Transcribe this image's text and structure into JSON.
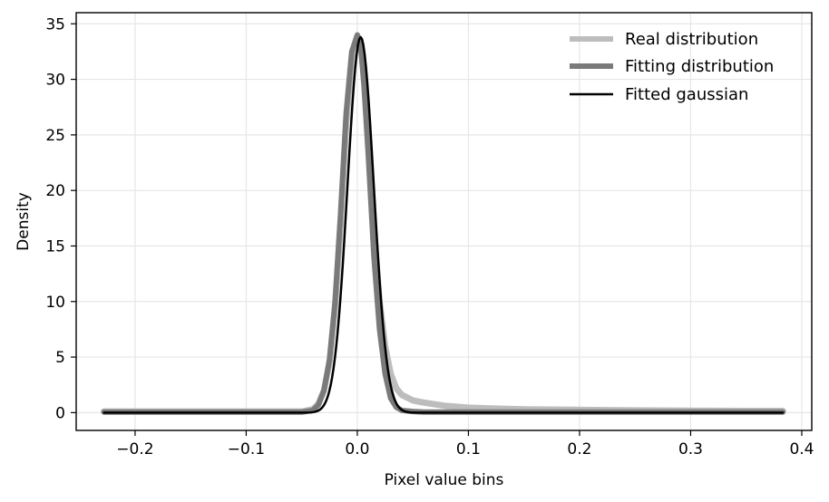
{
  "chart_data": {
    "type": "line",
    "title": "",
    "xlabel": "Pixel value bins",
    "ylabel": "Density",
    "xlim": [
      -0.253,
      0.409
    ],
    "ylim": [
      -1.6,
      36.0
    ],
    "xticks": [
      -0.2,
      -0.1,
      0.0,
      0.1,
      0.2,
      0.3,
      0.4
    ],
    "xtick_labels": [
      "−0.2",
      "−0.1",
      "0.0",
      "0.1",
      "0.2",
      "0.3",
      "0.4"
    ],
    "yticks": [
      0,
      5,
      10,
      15,
      20,
      25,
      30,
      35
    ],
    "ytick_labels": [
      "0",
      "5",
      "10",
      "15",
      "20",
      "25",
      "30",
      "35"
    ],
    "grid": true,
    "legend_position": "top-right",
    "series": [
      {
        "name": "Real distribution",
        "color": "#bdbdbd",
        "x": [
          -0.228,
          -0.1,
          -0.05,
          -0.04,
          -0.035,
          -0.03,
          -0.025,
          -0.02,
          -0.015,
          -0.01,
          -0.005,
          0.0,
          0.003,
          0.006,
          0.01,
          0.015,
          0.02,
          0.025,
          0.03,
          0.035,
          0.04,
          0.05,
          0.06,
          0.07,
          0.08,
          0.1,
          0.12,
          0.15,
          0.2,
          0.25,
          0.3,
          0.35,
          0.383
        ],
        "y": [
          0.1,
          0.1,
          0.1,
          0.3,
          0.8,
          2.0,
          4.5,
          9.5,
          17.0,
          26.0,
          32.0,
          33.5,
          33.2,
          30.5,
          24.0,
          16.5,
          10.0,
          6.0,
          3.5,
          2.2,
          1.6,
          1.1,
          0.9,
          0.75,
          0.6,
          0.45,
          0.38,
          0.3,
          0.25,
          0.2,
          0.17,
          0.15,
          0.15
        ]
      },
      {
        "name": "Fitting distribution",
        "color": "#7a7a7a",
        "x": [
          -0.228,
          -0.1,
          -0.05,
          -0.04,
          -0.035,
          -0.03,
          -0.025,
          -0.02,
          -0.015,
          -0.01,
          -0.005,
          0.0,
          0.003,
          0.006,
          0.01,
          0.015,
          0.02,
          0.025,
          0.03,
          0.035,
          0.04,
          0.05,
          0.06,
          0.07,
          0.08,
          0.1,
          0.15,
          0.2,
          0.25,
          0.3,
          0.35,
          0.383
        ],
        "y": [
          0.05,
          0.05,
          0.05,
          0.2,
          0.7,
          2.0,
          4.8,
          10.0,
          18.0,
          27.0,
          32.5,
          34.0,
          33.0,
          29.5,
          23.0,
          14.0,
          7.5,
          3.5,
          1.3,
          0.5,
          0.2,
          0.1,
          0.05,
          0.05,
          0.05,
          0.05,
          0.05,
          0.05,
          0.05,
          0.05,
          0.05,
          0.05
        ]
      },
      {
        "name": "Fitted gaussian",
        "color": "#000000",
        "type": "gaussian",
        "amplitude": 33.8,
        "mean": 0.003,
        "sigma": 0.0118,
        "x_range": [
          -0.228,
          0.383
        ]
      }
    ]
  }
}
